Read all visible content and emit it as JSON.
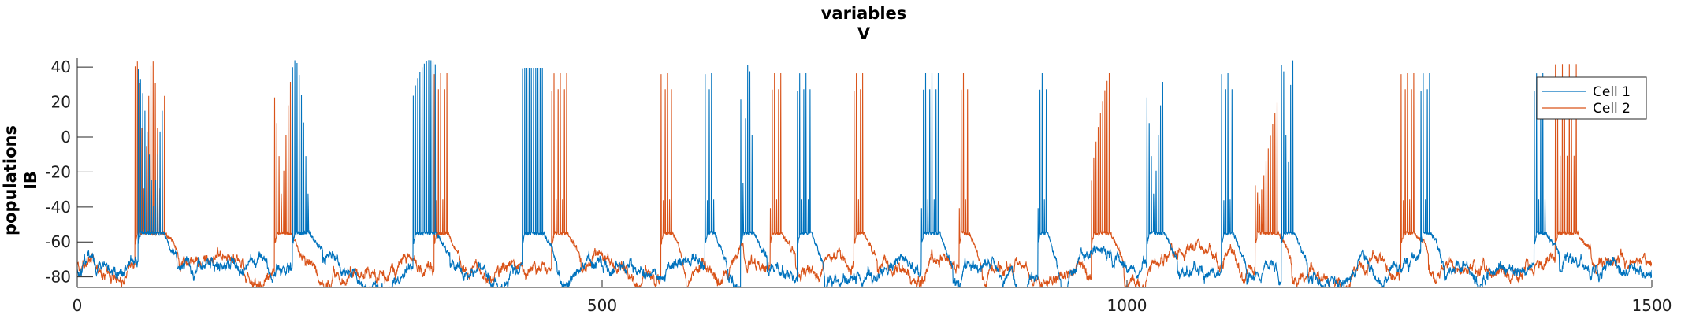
{
  "chart_data": {
    "type": "line",
    "title_line1": "variables",
    "title_line2": "V",
    "ylabel_line1": "populations",
    "ylabel_line2": "IB",
    "xlim": [
      0,
      1500
    ],
    "ylim": [
      -86,
      45
    ],
    "xticks": [
      0,
      500,
      1000,
      1500
    ],
    "xtick_labels": [
      "0",
      "500",
      "1000",
      "1500"
    ],
    "yticks": [
      40,
      20,
      0,
      -20,
      -40,
      -60,
      -80
    ],
    "ytick_labels": [
      "40",
      "20",
      "0",
      "-20",
      "-40",
      "-60",
      "-80"
    ],
    "legend_position": "top-right",
    "series": [
      {
        "name": "Cell 1",
        "color": "#0072BD",
        "bursts": [
          [
            58,
            83
          ],
          [
            205,
            222
          ],
          [
            320,
            343
          ],
          [
            424,
            445
          ],
          [
            598,
            608
          ],
          [
            632,
            645
          ],
          [
            686,
            700
          ],
          [
            804,
            822
          ],
          [
            915,
            925
          ],
          [
            1019,
            1036
          ],
          [
            1090,
            1102
          ],
          [
            1147,
            1160
          ],
          [
            1280,
            1290
          ],
          [
            1388,
            1400
          ]
        ]
      },
      {
        "name": "Cell 2",
        "color": "#D95319",
        "bursts": [
          [
            55,
            85
          ],
          [
            188,
            205
          ],
          [
            340,
            354
          ],
          [
            452,
            468
          ],
          [
            556,
            568
          ],
          [
            660,
            672
          ],
          [
            740,
            750
          ],
          [
            840,
            850
          ],
          [
            966,
            985
          ],
          [
            1122,
            1145
          ],
          [
            1261,
            1275
          ],
          [
            1408,
            1430
          ]
        ]
      }
    ]
  }
}
